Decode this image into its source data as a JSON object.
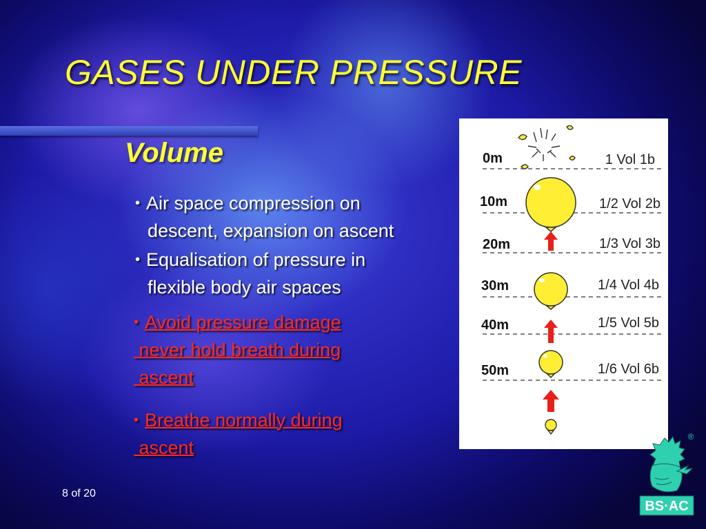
{
  "slide": {
    "title": "GASES UNDER PRESSURE",
    "subtitle": "Volume",
    "bullets": [
      {
        "line1": "Air space compression on",
        "line2": "descent, expansion on ascent"
      },
      {
        "line1": "Equalisation of pressure in",
        "line2": "flexible body air spaces"
      },
      {
        "line1": "Avoid pressure damage",
        "line2": " never hold breath during",
        "line3": " ascent"
      },
      {
        "line1": "Breathe normally during",
        "line2": " ascent"
      }
    ],
    "bullet_glyph": "•",
    "page_indicator": "8 of 20"
  },
  "diagram": {
    "rows": [
      {
        "depth": "0m",
        "volume": "1 Vol 1b"
      },
      {
        "depth": "10m",
        "volume": "1/2 Vol 2b"
      },
      {
        "depth": "20m",
        "volume": "1/3 Vol 3b"
      },
      {
        "depth": "30m",
        "volume": "1/4 Vol 4b"
      },
      {
        "depth": "40m",
        "volume": "1/5 Vol 5b"
      },
      {
        "depth": "50m",
        "volume": "1/6 Vol 6b"
      }
    ],
    "balloon_color": "#ffee33",
    "arrow_color": "#e8201a"
  },
  "logo": {
    "text": "BS·AC",
    "registered_mark": "®",
    "color": "#2fd0b0"
  }
}
